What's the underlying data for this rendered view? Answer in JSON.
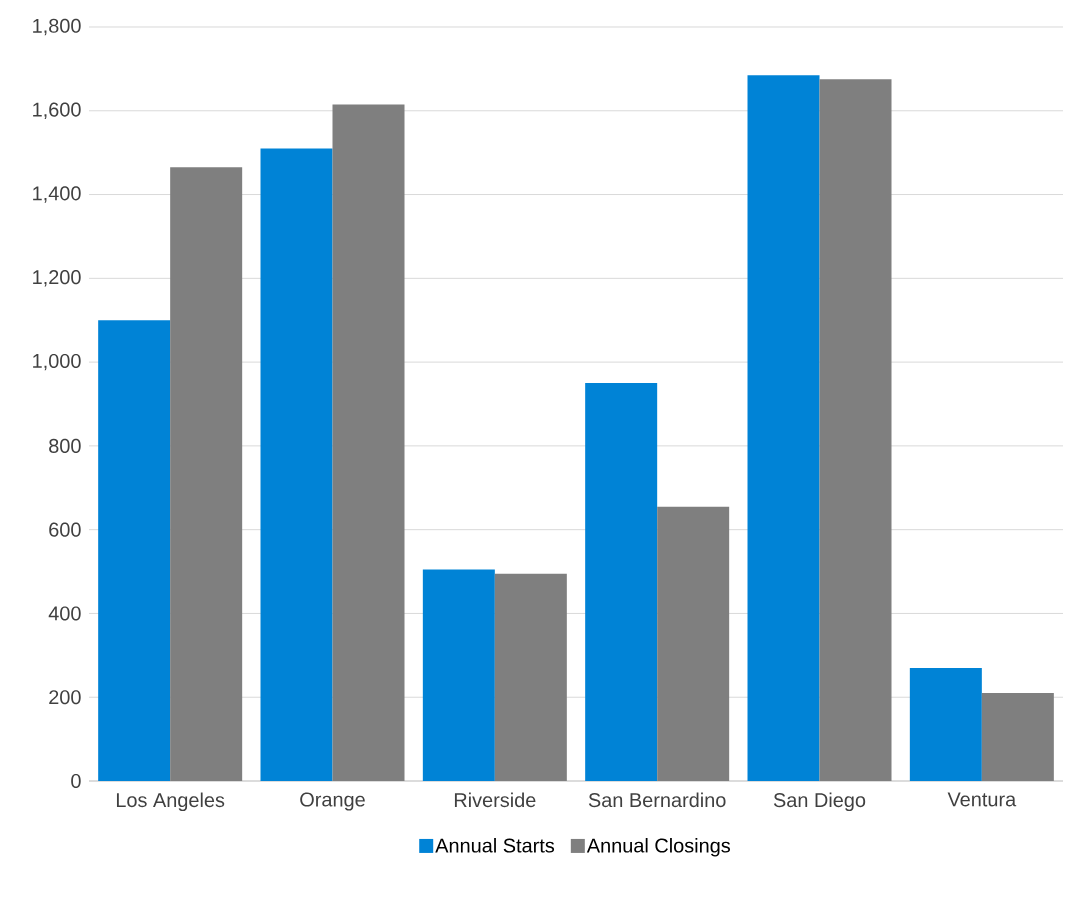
{
  "chart_data": {
    "type": "bar",
    "categories": [
      "Los Angeles",
      "Orange",
      "Riverside",
      "San Bernardino",
      "San Diego",
      "Ventura"
    ],
    "series": [
      {
        "name": "Annual Starts",
        "color": "#0083d6",
        "values": [
          1100,
          1510,
          505,
          950,
          1685,
          270
        ]
      },
      {
        "name": "Annual Closings",
        "color": "#7f7f7f",
        "values": [
          1465,
          1615,
          495,
          655,
          1675,
          210
        ]
      }
    ],
    "ylim": [
      0,
      1800
    ],
    "yticks": [
      {
        "value": 0,
        "label": "0"
      },
      {
        "value": 200,
        "label": "200"
      },
      {
        "value": 400,
        "label": "400"
      },
      {
        "value": 600,
        "label": "600"
      },
      {
        "value": 800,
        "label": "800"
      },
      {
        "value": 1000,
        "label": "1,000"
      },
      {
        "value": 1200,
        "label": "1,200"
      },
      {
        "value": 1400,
        "label": "1,400"
      },
      {
        "value": 1600,
        "label": "1,600"
      },
      {
        "value": 1800,
        "label": "1,800"
      }
    ],
    "grid": "y",
    "legend": "bottom"
  }
}
